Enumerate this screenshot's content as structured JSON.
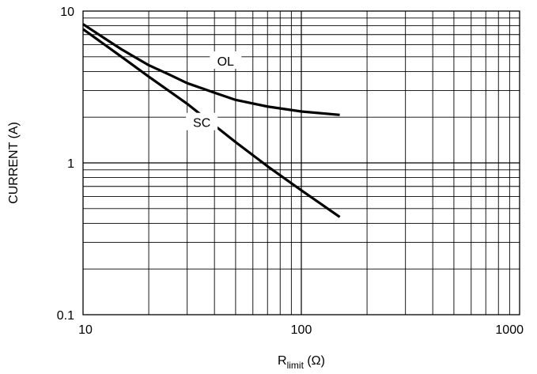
{
  "chart_data": {
    "type": "line",
    "xscale": "log",
    "yscale": "log",
    "xlim": [
      10,
      1000
    ],
    "ylim": [
      0.1,
      10
    ],
    "grid": true,
    "x_ticks": [
      "10",
      "100",
      "1000"
    ],
    "y_ticks": [
      "0.1",
      "1",
      "10"
    ],
    "ylabel": "CURRENT (A)",
    "xlabel": {
      "main": "R",
      "sub": "limit",
      "unit": " (Ω)"
    },
    "series": [
      {
        "name": "OL",
        "x": [
          10,
          12,
          15,
          20,
          25,
          30,
          40,
          50,
          70,
          100,
          150
        ],
        "y": [
          8.2,
          6.9,
          5.6,
          4.4,
          3.8,
          3.35,
          2.9,
          2.6,
          2.35,
          2.18,
          2.07
        ]
      },
      {
        "name": "SC",
        "x": [
          10,
          15,
          20,
          30,
          50,
          70,
          100,
          150
        ],
        "y": [
          7.6,
          5.0,
          3.7,
          2.45,
          1.37,
          0.95,
          0.66,
          0.44
        ]
      }
    ],
    "line_color": "#000000",
    "grid_color": "#000000"
  }
}
